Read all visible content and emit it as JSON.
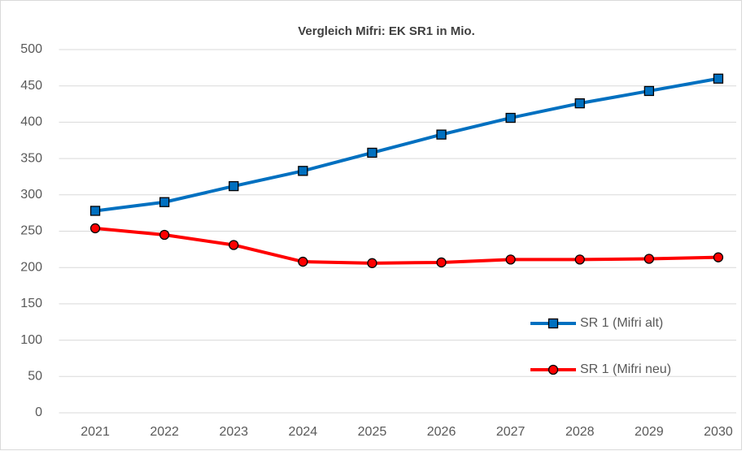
{
  "chart_data": {
    "type": "line",
    "title": "Vergleich Mifri: EK SR1 in Mio.",
    "categories": [
      "2021",
      "2022",
      "2023",
      "2024",
      "2025",
      "2026",
      "2027",
      "2028",
      "2029",
      "2030"
    ],
    "series": [
      {
        "name": "SR 1 (Mifri alt)",
        "color": "#0070c0",
        "marker": "square",
        "values": [
          278,
          290,
          312,
          333,
          358,
          383,
          406,
          426,
          443,
          460
        ]
      },
      {
        "name": "SR 1 (Mifri neu)",
        "color": "#ff0000",
        "marker": "circle",
        "values": [
          254,
          245,
          231,
          208,
          206,
          207,
          211,
          211,
          212,
          214
        ]
      }
    ],
    "ylim": [
      0,
      500
    ],
    "yticks": [
      0,
      50,
      100,
      150,
      200,
      250,
      300,
      350,
      400,
      450,
      500
    ],
    "grid": true,
    "legend": "right"
  }
}
